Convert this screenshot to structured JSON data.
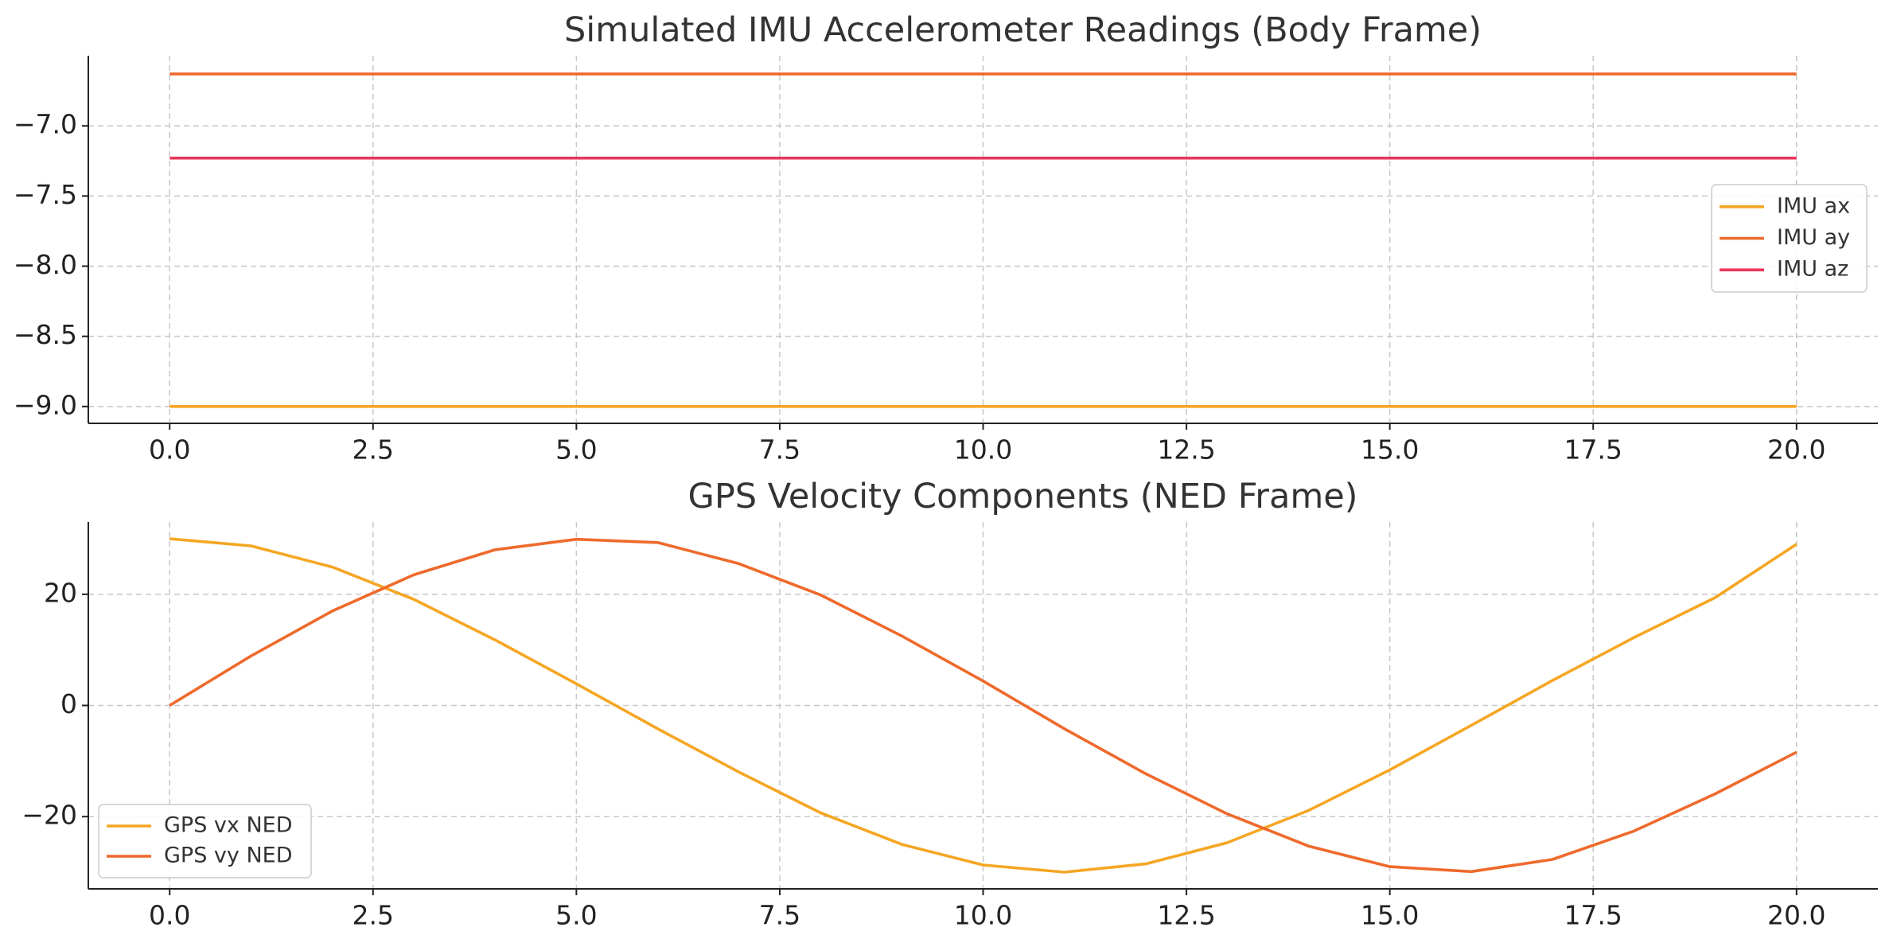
{
  "chart_data": [
    {
      "type": "line",
      "title": "Simulated IMU Accelerometer Readings (Body Frame)",
      "xlabel": "",
      "ylabel": "",
      "xlim": [
        -1.0,
        21.0
      ],
      "ylim": [
        -9.12,
        -6.5
      ],
      "xticks": [
        0.0,
        2.5,
        5.0,
        7.5,
        10.0,
        12.5,
        15.0,
        17.5,
        20.0
      ],
      "xtick_labels": [
        "0.0",
        "2.5",
        "5.0",
        "7.5",
        "10.0",
        "12.5",
        "15.0",
        "17.5",
        "20.0"
      ],
      "yticks": [
        -9.0,
        -8.5,
        -8.0,
        -7.5,
        -7.0
      ],
      "ytick_labels": [
        "−9.0",
        "−8.5",
        "−8.0",
        "−7.5",
        "−7.0"
      ],
      "grid": true,
      "legend_position": "right",
      "series": [
        {
          "name": "IMU ax",
          "color": "#f5a623",
          "x": [
            0.0,
            20.0
          ],
          "y": [
            -9.0,
            -9.0
          ]
        },
        {
          "name": "IMU ay",
          "color": "#ee6a2c",
          "x": [
            0.0,
            20.0
          ],
          "y": [
            -6.63,
            -6.63
          ]
        },
        {
          "name": "IMU az",
          "color": "#e8375a",
          "x": [
            0.0,
            20.0
          ],
          "y": [
            -7.23,
            -7.23
          ]
        }
      ]
    },
    {
      "type": "line",
      "title": "GPS Velocity Components (NED Frame)",
      "xlabel": "",
      "ylabel": "",
      "xlim": [
        -1.0,
        21.0
      ],
      "ylim": [
        -33.0,
        33.0
      ],
      "xticks": [
        0.0,
        2.5,
        5.0,
        7.5,
        10.0,
        12.5,
        15.0,
        17.5,
        20.0
      ],
      "xtick_labels": [
        "0.0",
        "2.5",
        "5.0",
        "7.5",
        "10.0",
        "12.5",
        "15.0",
        "17.5",
        "20.0"
      ],
      "yticks": [
        -20,
        0,
        20
      ],
      "ytick_labels": [
        "−20",
        "0",
        "20"
      ],
      "grid": true,
      "legend_position": "lower left",
      "series": [
        {
          "name": "GPS vx NED",
          "color": "#f5a623",
          "x": [
            0,
            1,
            2,
            3,
            4,
            5,
            6,
            7,
            8,
            9,
            10,
            11,
            12,
            13,
            14,
            15,
            16,
            17,
            18,
            19,
            20
          ],
          "y": [
            30.0,
            28.7,
            24.9,
            19.1,
            11.8,
            3.9,
            -4.2,
            -12.0,
            -19.3,
            -25.0,
            -28.7,
            -30.0,
            -28.5,
            -24.7,
            -18.9,
            -11.6,
            -3.6,
            4.5,
            12.2,
            19.4,
            29.0
          ]
        },
        {
          "name": "GPS vy NED",
          "color": "#ee6a2c",
          "x": [
            0,
            1,
            2,
            3,
            4,
            5,
            6,
            7,
            8,
            9,
            10,
            11,
            12,
            13,
            14,
            15,
            16,
            17,
            18,
            19,
            20
          ],
          "y": [
            0.0,
            8.9,
            17.0,
            23.5,
            28.0,
            29.9,
            29.3,
            25.5,
            19.9,
            12.5,
            4.4,
            -4.2,
            -12.3,
            -19.5,
            -25.3,
            -29.0,
            -29.9,
            -27.7,
            -22.6,
            -15.9,
            -8.4
          ]
        }
      ]
    }
  ]
}
